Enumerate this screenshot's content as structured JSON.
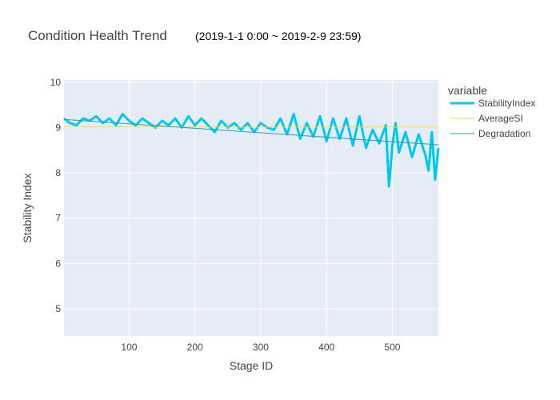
{
  "chart_data": {
    "type": "line",
    "title": "Condition Health Trend",
    "subtitle": "(2019-1-1 0:00 ~ 2019-2-9 23:59)",
    "xlabel": "Stage ID",
    "ylabel": "Stability Index",
    "xlim": [
      1,
      570
    ],
    "ylim": [
      4.4,
      10.05
    ],
    "xticks": [
      100,
      200,
      300,
      400,
      500
    ],
    "yticks": [
      5,
      6,
      7,
      8,
      9,
      10
    ],
    "grid": true,
    "legend": {
      "title": "variable",
      "placement": "right"
    },
    "series": [
      {
        "name": "StabilityIndex",
        "color": "#00c8f0",
        "x": [
          1,
          10,
          20,
          30,
          40,
          50,
          60,
          70,
          80,
          90,
          100,
          110,
          120,
          130,
          140,
          150,
          160,
          170,
          180,
          190,
          200,
          210,
          220,
          230,
          240,
          250,
          260,
          270,
          280,
          290,
          300,
          310,
          320,
          330,
          340,
          350,
          360,
          370,
          380,
          390,
          400,
          410,
          420,
          430,
          440,
          450,
          460,
          470,
          480,
          490,
          495,
          500,
          505,
          510,
          520,
          530,
          540,
          550,
          555,
          560,
          565,
          570
        ],
        "values": [
          9.2,
          9.1,
          9.05,
          9.2,
          9.15,
          9.25,
          9.1,
          9.2,
          9.05,
          9.3,
          9.15,
          9.05,
          9.2,
          9.1,
          9.0,
          9.15,
          9.05,
          9.2,
          9.0,
          9.25,
          9.05,
          9.2,
          9.05,
          8.9,
          9.15,
          9.0,
          9.1,
          8.95,
          9.1,
          8.9,
          9.1,
          9.0,
          8.95,
          9.2,
          8.85,
          9.3,
          8.75,
          9.1,
          8.8,
          9.25,
          8.7,
          9.2,
          8.75,
          9.2,
          8.6,
          9.25,
          8.55,
          8.95,
          8.65,
          9.05,
          7.7,
          8.6,
          9.1,
          8.45,
          8.9,
          8.35,
          8.85,
          8.4,
          8.05,
          8.9,
          7.85,
          8.55
        ]
      },
      {
        "name": "AverageSI",
        "color": "#e8d24a",
        "x": [
          1,
          570
        ],
        "values": [
          9.01,
          9.01
        ]
      },
      {
        "name": "Degradation",
        "color": "#2a9fae",
        "x": [
          1,
          570
        ],
        "values": [
          9.18,
          8.62
        ]
      }
    ]
  }
}
